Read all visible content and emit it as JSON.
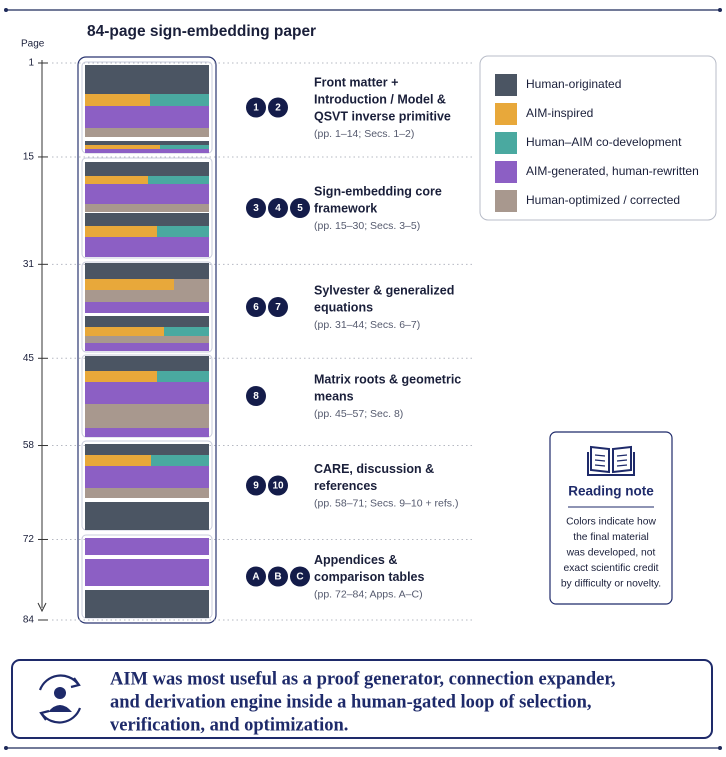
{
  "header": {
    "title": "84-page sign-embedding paper"
  },
  "axis": {
    "label": "Page",
    "ticks": [
      1,
      15,
      31,
      45,
      58,
      72,
      84
    ]
  },
  "sections": [
    {
      "badges": [
        "1",
        "2"
      ],
      "title_lines": [
        "Front matter +",
        "Introduction / Model &",
        "QSVT inverse primitive"
      ],
      "pages": "(pp. 1–14; Secs. 1–2)"
    },
    {
      "badges": [
        "3",
        "4",
        "5"
      ],
      "title_lines": [
        "Sign-embedding core",
        "framework"
      ],
      "pages": "(pp. 15–30; Secs. 3–5)"
    },
    {
      "badges": [
        "6",
        "7"
      ],
      "title_lines": [
        "Sylvester & generalized",
        "equations"
      ],
      "pages": "(pp. 31–44; Secs. 6–7)"
    },
    {
      "badges": [
        "8"
      ],
      "title_lines": [
        "Matrix roots & geometric",
        "means"
      ],
      "pages": "(pp. 45–57; Sec. 8)"
    },
    {
      "badges": [
        "9",
        "10"
      ],
      "title_lines": [
        "CARE, discussion &",
        "references"
      ],
      "pages": "(pp. 58–71; Secs. 9–10 + refs.)"
    },
    {
      "badges": [
        "A",
        "B",
        "C"
      ],
      "title_lines": [
        "Appendices &",
        "comparison tables"
      ],
      "pages": "(pp. 72–84; Apps. A–C)"
    }
  ],
  "legend": [
    {
      "label": "Human-originated",
      "color": "#4b5563"
    },
    {
      "label": "AIM-inspired",
      "color": "#e8a83a"
    },
    {
      "label": "Human–AIM co-development",
      "color": "#4aa9a0"
    },
    {
      "label": "AIM-generated, human-rewritten",
      "color": "#8c5fc4"
    },
    {
      "label": "Human-optimized / corrected",
      "color": "#a8988e"
    }
  ],
  "note": {
    "title": "Reading note",
    "lines": [
      "Colors indicate how",
      "the final material",
      "was developed, not",
      "exact scientific credit",
      "by difficulty or novelty."
    ]
  },
  "banner": {
    "lines": [
      "AIM was most useful as a proof generator, connection expander,",
      "and derivation engine inside a human-gated loop of selection,",
      "verification, and optimization."
    ]
  }
}
